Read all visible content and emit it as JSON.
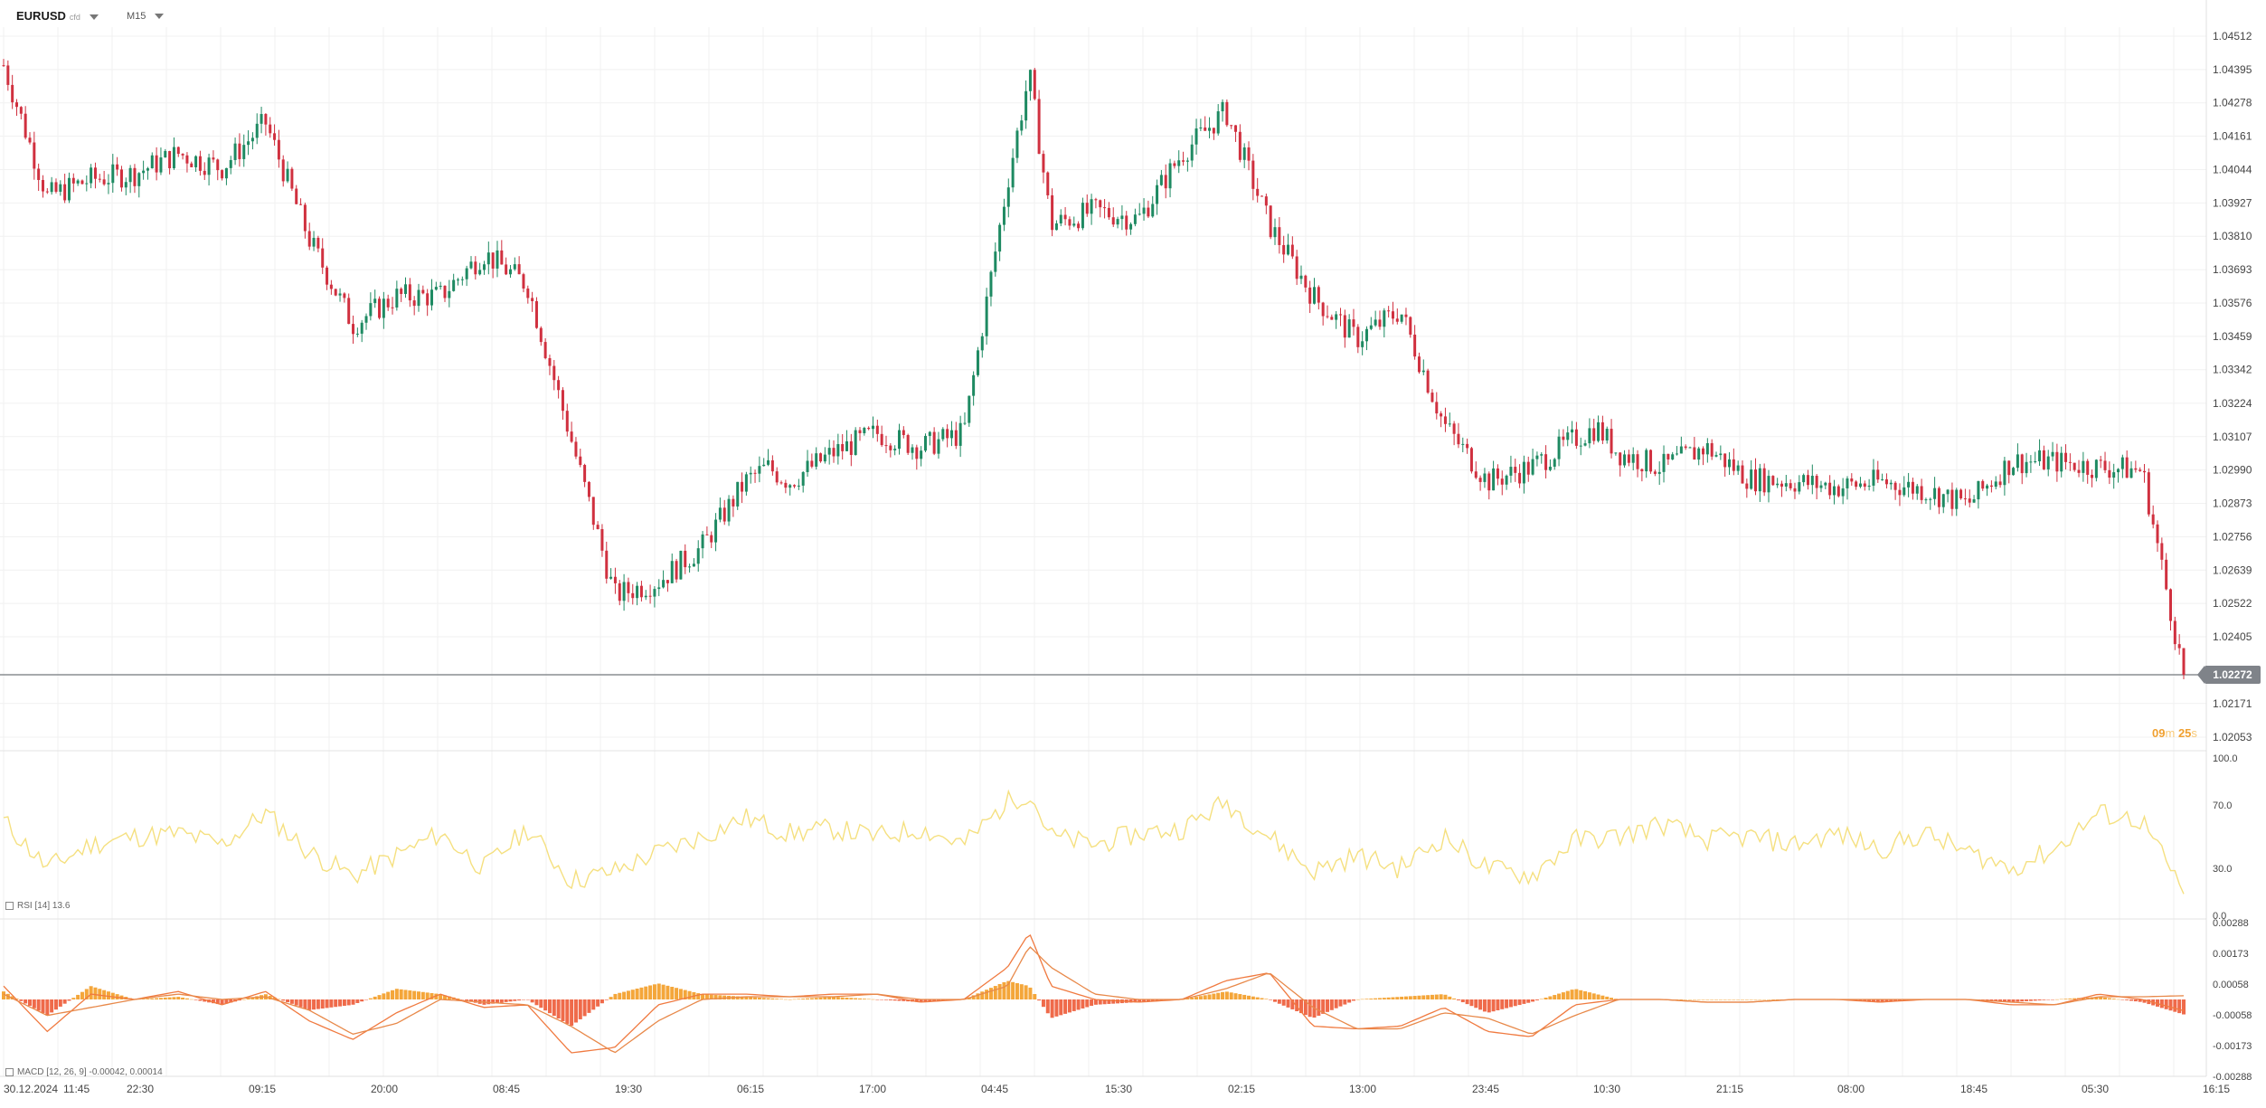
{
  "header": {
    "symbol": "EURUSD",
    "symbol_sub": "cfd",
    "timeframe": "M15"
  },
  "price_axis": [
    "1.04512",
    "1.04395",
    "1.04278",
    "1.04161",
    "1.04044",
    "1.03927",
    "1.03810",
    "1.03693",
    "1.03576",
    "1.03459",
    "1.03342",
    "1.03224",
    "1.03107",
    "1.02990",
    "1.02873",
    "1.02756",
    "1.02639",
    "1.02522",
    "1.02405",
    "1.02171",
    "1.02053"
  ],
  "current_price": "1.02272",
  "countdown": {
    "minutes": "09",
    "minutes_unit": "m",
    "seconds": "25",
    "seconds_unit": "s"
  },
  "time_axis": [
    "30.12.2024",
    "11:45",
    "22:30",
    "09:15",
    "20:00",
    "08:45",
    "19:30",
    "06:15",
    "17:00",
    "04:45",
    "15:30",
    "02:15",
    "13:00",
    "23:45",
    "10:30",
    "21:15",
    "08:00",
    "18:45",
    "05:30",
    "16:15"
  ],
  "colors": {
    "up": "#1e8a62",
    "down": "#d0303f",
    "rsi": "#f5e080",
    "macd_line": "#f07a40",
    "signal_line": "#e8894a",
    "hist_pos": "#f4a63a",
    "hist_neg": "#ef6a4a",
    "countdown": "#f0a030"
  },
  "rsi": {
    "label": "RSI [14]",
    "value": "13.6",
    "axis": [
      "100.0",
      "70.0",
      "30.0",
      "0.0"
    ]
  },
  "macd": {
    "label": "MACD [12, 26, 9]",
    "values": "-0.00042, 0.00014",
    "axis": [
      "0.00288",
      "0.00173",
      "0.00058",
      "-0.00058",
      "-0.00173",
      "-0.00288"
    ]
  },
  "chart_data": [
    {
      "type": "candlestick",
      "title": "EURUSD",
      "timeframe": "M15",
      "ylim": [
        1.02053,
        1.04512
      ],
      "grid": true,
      "x_ticks": [
        "30.12.2024 11:45",
        "22:30",
        "09:15",
        "20:00",
        "08:45",
        "19:30",
        "06:15",
        "17:00",
        "04:45",
        "15:30",
        "02:15",
        "13:00",
        "23:45",
        "10:30",
        "21:15",
        "08:00",
        "18:45",
        "05:30",
        "16:15"
      ],
      "close_path": {
        "x": [
          0,
          20,
          40,
          60,
          80,
          100,
          120,
          140,
          160,
          180,
          200,
          220,
          240,
          260,
          280,
          300,
          320,
          340,
          350,
          360,
          380,
          400,
          420,
          440,
          460,
          470,
          480,
          500,
          520,
          540,
          560,
          580,
          600,
          620,
          640,
          660,
          680,
          700,
          720,
          730,
          740,
          760,
          780,
          800,
          820,
          840,
          860,
          880,
          900,
          920,
          940,
          960,
          980,
          999
        ],
        "y": [
          1.0441,
          1.0395,
          1.0401,
          1.0403,
          1.041,
          1.0405,
          1.0421,
          1.038,
          1.035,
          1.036,
          1.036,
          1.0375,
          1.0364,
          1.031,
          1.0255,
          1.026,
          1.0272,
          1.0295,
          1.03,
          1.0295,
          1.0305,
          1.0312,
          1.0307,
          1.0312,
          1.04,
          1.0438,
          1.0385,
          1.039,
          1.0387,
          1.041,
          1.0425,
          1.0385,
          1.036,
          1.0345,
          1.0355,
          1.0315,
          1.0295,
          1.03,
          1.031,
          1.0314,
          1.0305,
          1.03,
          1.0307,
          1.0296,
          1.0295,
          1.0293,
          1.0295,
          1.0292,
          1.0287,
          1.0302,
          1.0302,
          1.03,
          1.0299,
          1.0227
        ]
      }
    },
    {
      "type": "line",
      "title": "RSI [14]",
      "ylim": [
        0,
        100
      ],
      "last_value": 13.6,
      "x": [
        0,
        20,
        40,
        60,
        80,
        100,
        120,
        140,
        160,
        180,
        200,
        220,
        240,
        260,
        280,
        300,
        320,
        340,
        360,
        380,
        400,
        420,
        440,
        460,
        470,
        480,
        500,
        520,
        540,
        560,
        580,
        600,
        620,
        640,
        660,
        680,
        700,
        720,
        740,
        760,
        780,
        800,
        820,
        840,
        860,
        880,
        900,
        920,
        940,
        960,
        980,
        999
      ],
      "values": [
        60,
        30,
        45,
        50,
        52,
        45,
        65,
        40,
        25,
        38,
        52,
        30,
        55,
        22,
        28,
        40,
        50,
        62,
        52,
        55,
        50,
        55,
        45,
        72,
        78,
        50,
        45,
        52,
        55,
        72,
        50,
        28,
        38,
        30,
        50,
        30,
        25,
        48,
        50,
        58,
        48,
        50,
        45,
        52,
        42,
        52,
        40,
        30,
        42,
        65,
        60,
        13.6
      ]
    },
    {
      "type": "line",
      "title": "MACD [12, 26, 9]",
      "ylim": [
        -0.00288,
        0.00288
      ],
      "last_values": {
        "macd": -0.00042,
        "signal": 0.00014
      },
      "x": [
        0,
        20,
        40,
        60,
        80,
        100,
        120,
        140,
        160,
        180,
        200,
        220,
        240,
        260,
        280,
        300,
        320,
        340,
        360,
        380,
        400,
        420,
        440,
        460,
        470,
        480,
        500,
        520,
        540,
        560,
        580,
        600,
        620,
        640,
        660,
        680,
        700,
        720,
        740,
        760,
        780,
        800,
        820,
        840,
        860,
        880,
        900,
        920,
        940,
        960,
        980,
        999
      ],
      "series": [
        {
          "name": "MACD",
          "values": [
            0.0005,
            -0.0012,
            0.0002,
            0.0,
            0.0003,
            -0.0002,
            0.0003,
            -0.0008,
            -0.0015,
            -0.0005,
            0.0002,
            -0.0003,
            -0.0002,
            -0.002,
            -0.0018,
            -0.0002,
            0.0002,
            0.0002,
            0.0001,
            0.0002,
            0.0002,
            -0.0001,
            0.0,
            0.0012,
            0.0025,
            0.0005,
            0.0,
            -0.0001,
            0.0,
            0.0007,
            0.001,
            -0.001,
            -0.0011,
            -0.001,
            -0.0003,
            -0.0012,
            -0.0014,
            -0.0002,
            0.0,
            0.0,
            -0.0001,
            -0.0001,
            0.0,
            0.0,
            -0.0001,
            0.0,
            0.0,
            -0.0002,
            -0.0002,
            0.0002,
            0.0,
            -0.00042
          ]
        },
        {
          "name": "Signal",
          "values": [
            0.0002,
            -0.0006,
            -0.0003,
            0.0,
            0.0002,
            0.0,
            0.0001,
            -0.0004,
            -0.0013,
            -0.0009,
            0.0,
            -0.0001,
            -0.0002,
            -0.001,
            -0.002,
            -0.0008,
            0.0,
            0.0001,
            0.0001,
            0.0001,
            0.0002,
            0.0,
            0.0,
            0.0005,
            0.002,
            0.0012,
            0.0002,
            0.0,
            0.0,
            0.0004,
            0.001,
            -0.0003,
            -0.0011,
            -0.0011,
            -0.0005,
            -0.0007,
            -0.0013,
            -0.0006,
            0.0,
            0.0,
            -0.0001,
            -0.0001,
            0.0,
            0.0,
            0.0,
            0.0,
            0.0,
            -0.0001,
            -0.0002,
            0.0001,
            0.0001,
            0.00014
          ]
        }
      ]
    }
  ]
}
